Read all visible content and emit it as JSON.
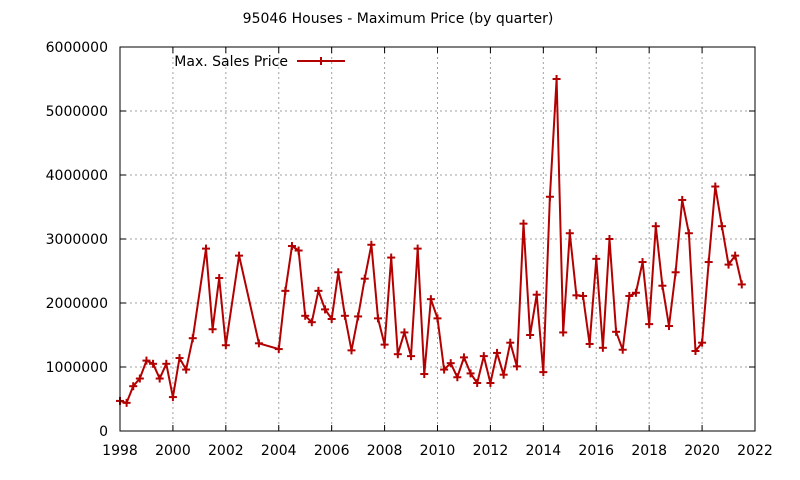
{
  "chart_data": {
    "type": "line",
    "title": "95046 Houses - Maximum Price (by quarter)",
    "xlabel": "",
    "ylabel": "",
    "xlim": [
      1998,
      2022
    ],
    "ylim": [
      0,
      6000000
    ],
    "x_ticks": [
      "1998",
      "2000",
      "2002",
      "2004",
      "2006",
      "2008",
      "2010",
      "2012",
      "2014",
      "2016",
      "2018",
      "2020",
      "2022"
    ],
    "y_ticks": [
      "0",
      "1000000",
      "2000000",
      "3000000",
      "4000000",
      "5000000",
      "6000000"
    ],
    "grid": true,
    "legend_position": "top-left",
    "series": [
      {
        "name": "Max. Sales Price",
        "color": "#b30000",
        "marker": "plus",
        "x": [
          1998.0,
          1998.25,
          1998.5,
          1998.75,
          1999.0,
          1999.25,
          1999.5,
          1999.75,
          2000.0,
          2000.25,
          2000.5,
          2000.75,
          2001.25,
          2001.5,
          2001.75,
          2002.0,
          2002.5,
          2003.25,
          2004.0,
          2004.25,
          2004.5,
          2004.75,
          2005.0,
          2005.25,
          2005.5,
          2005.75,
          2006.0,
          2006.25,
          2006.5,
          2006.75,
          2007.0,
          2007.25,
          2007.5,
          2007.75,
          2008.0,
          2008.25,
          2008.5,
          2008.75,
          2009.0,
          2009.25,
          2009.5,
          2009.75,
          2010.0,
          2010.25,
          2010.5,
          2010.75,
          2011.0,
          2011.25,
          2011.5,
          2011.75,
          2012.0,
          2012.25,
          2012.5,
          2012.75,
          2013.0,
          2013.25,
          2013.5,
          2013.75,
          2014.0,
          2014.25,
          2014.5,
          2014.75,
          2015.0,
          2015.25,
          2015.5,
          2015.75,
          2016.0,
          2016.25,
          2016.5,
          2016.75,
          2017.0,
          2017.25,
          2017.5,
          2017.75,
          2018.0,
          2018.25,
          2018.5,
          2018.75,
          2019.0,
          2019.25,
          2019.5,
          2019.75,
          2020.0,
          2020.25,
          2020.5,
          2020.75,
          2021.0,
          2021.25,
          2021.5
        ],
        "y": [
          470000,
          440000,
          700000,
          820000,
          1100000,
          1050000,
          820000,
          1050000,
          530000,
          1140000,
          960000,
          1450000,
          2850000,
          1590000,
          2390000,
          1340000,
          2740000,
          1370000,
          1280000,
          2190000,
          2890000,
          2820000,
          1800000,
          1700000,
          2190000,
          1900000,
          1750000,
          2480000,
          1800000,
          1260000,
          1790000,
          2380000,
          2910000,
          1760000,
          1350000,
          2710000,
          1200000,
          1540000,
          1170000,
          2850000,
          890000,
          2060000,
          1760000,
          960000,
          1060000,
          840000,
          1150000,
          900000,
          750000,
          1170000,
          750000,
          1220000,
          880000,
          1380000,
          1010000,
          3240000,
          1500000,
          2130000,
          920000,
          3660000,
          5500000,
          1540000,
          3090000,
          2120000,
          2110000,
          1360000,
          2690000,
          1300000,
          3000000,
          1550000,
          1270000,
          2110000,
          2160000,
          2640000,
          1670000,
          3200000,
          2270000,
          1640000,
          2480000,
          3610000,
          3090000,
          1250000,
          1380000,
          2640000,
          3820000,
          3200000,
          2600000,
          2740000,
          2290000
        ]
      }
    ]
  }
}
